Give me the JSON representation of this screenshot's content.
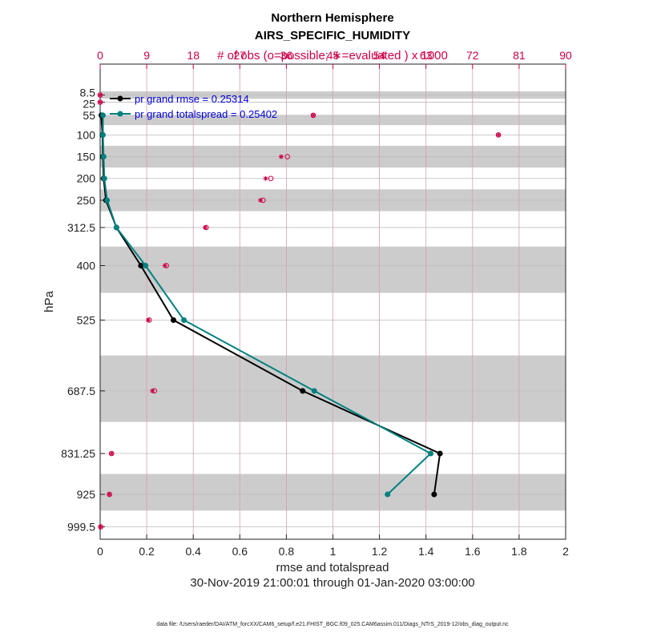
{
  "chart_data": {
    "type": "line",
    "title": "Northern Hemisphere",
    "subtitle": "AIRS_SPECIFIC_HUMIDITY",
    "top_axis_label": "# of obs (o=possible; ∗=evaluated ) x 1000",
    "xlabel": "rmse and totalspread",
    "ylabel": "hPa",
    "date_range": "30-Nov-2019 21:00:01 through 01-Jan-2020 03:00:00",
    "data_file": "data file: /Users/raeder/DAI/ATM_forcXX/CAM6_setup/f.e21.FHIST_BGC.f09_025.CAM6assim.011/Diags_NTrS_2019-12/obs_diag_output.nc",
    "xlim": [
      0,
      2
    ],
    "xticks": [
      "0",
      "0.2",
      "0.4",
      "0.6",
      "0.8",
      "1",
      "1.2",
      "1.4",
      "1.6",
      "1.8",
      "2"
    ],
    "top_xlim": [
      0,
      90
    ],
    "top_xticks": [
      "0",
      "9",
      "18",
      "27",
      "36",
      "45",
      "54",
      "63",
      "72",
      "81",
      "90"
    ],
    "levels": [
      8.5,
      25,
      55,
      100,
      150,
      200,
      250,
      312.5,
      400,
      525,
      687.5,
      831.25,
      925,
      999.5
    ],
    "level_labels": [
      "8.5",
      "25",
      "55",
      "100",
      "150",
      "200",
      "250",
      "312.5",
      "400",
      "525",
      "687.5",
      "831.25",
      "925",
      "999.5"
    ],
    "shaded_bands": [
      [
        0,
        17
      ],
      [
        55,
        77.5
      ],
      [
        125,
        175
      ],
      [
        225,
        275
      ],
      [
        356.25,
        462.5
      ],
      [
        606.25,
        758.75
      ],
      [
        878.13,
        962.25
      ]
    ],
    "legend_placement": "top-left",
    "series": [
      {
        "name": "pr grand rmse = 0.25314",
        "color": "#000000",
        "levels": [
          55,
          100,
          150,
          200,
          250,
          312.5,
          400,
          525,
          687.5,
          831.25,
          925
        ],
        "values": [
          0.005,
          0.01,
          0.012,
          0.015,
          0.025,
          0.07,
          0.175,
          0.315,
          0.87,
          1.46,
          1.435
        ]
      },
      {
        "name": "pr grand totalspread = 0.25402",
        "color": "#008080",
        "levels": [
          55,
          100,
          150,
          200,
          250,
          312.5,
          400,
          525,
          687.5,
          831.25,
          925
        ],
        "values": [
          0.012,
          0.012,
          0.015,
          0.018,
          0.03,
          0.07,
          0.195,
          0.36,
          0.92,
          1.42,
          1.235
        ]
      }
    ],
    "obs_counts": {
      "color": "#cc0044",
      "levels": [
        8.5,
        25,
        55,
        100,
        150,
        200,
        250,
        312.5,
        400,
        525,
        687.5,
        831.25,
        925,
        999.5
      ],
      "possible": [
        0,
        0,
        41.2,
        77,
        36.2,
        33,
        31.5,
        20.5,
        12.8,
        9.5,
        10.5,
        2.2,
        1.8,
        0.1
      ],
      "evaluated": [
        0,
        0,
        41.2,
        77,
        35,
        32,
        31,
        20.3,
        12.5,
        9.3,
        10.1,
        2.2,
        1.8,
        0.1
      ]
    }
  }
}
